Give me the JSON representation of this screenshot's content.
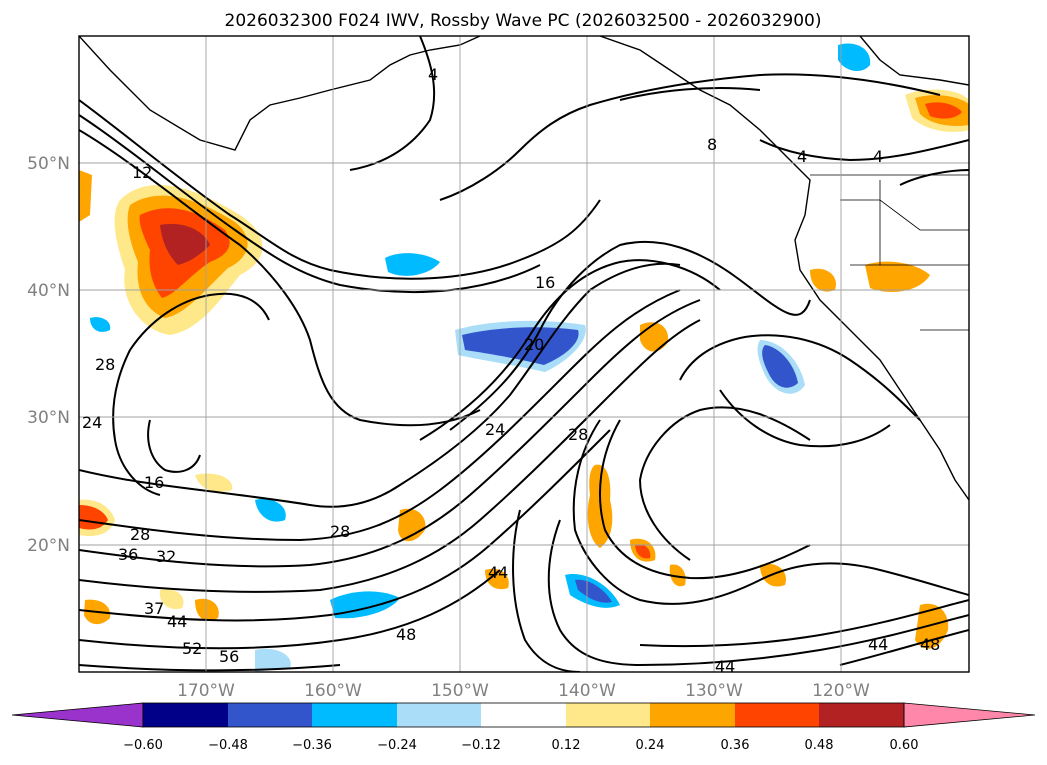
{
  "title": "2026032300 F024 IWV, Rossby Wave PC (2026032500 - 2026032900)",
  "map": {
    "lat_labels": [
      "50°N",
      "40°N",
      "30°N",
      "20°N"
    ],
    "lon_labels": [
      "170°W",
      "160°W",
      "150°W",
      "140°W",
      "130°W",
      "120°W"
    ],
    "grid": true,
    "extent": {
      "lon": [
        -178,
        -108
      ],
      "lat": [
        10,
        60
      ]
    }
  },
  "contour_labels": [
    "4",
    "8",
    "4",
    "4",
    "12",
    "16",
    "20",
    "24",
    "28",
    "28",
    "24",
    "16",
    "28",
    "36",
    "32",
    "37",
    "44",
    "52",
    "56",
    "48",
    "44",
    "28",
    "44",
    "44",
    "48"
  ],
  "colorbar": {
    "ticks": [
      "−0.60",
      "−0.48",
      "−0.36",
      "−0.24",
      "−0.12",
      "0.12",
      "0.24",
      "0.36",
      "0.48",
      "0.60"
    ],
    "colors": [
      "#9933cc",
      "#000088",
      "#3355cc",
      "#00bbff",
      "#aaddf8",
      "#ffffff",
      "#ffe88a",
      "#ffa500",
      "#ff4400",
      "#b22222",
      "#ff88aa"
    ]
  }
}
